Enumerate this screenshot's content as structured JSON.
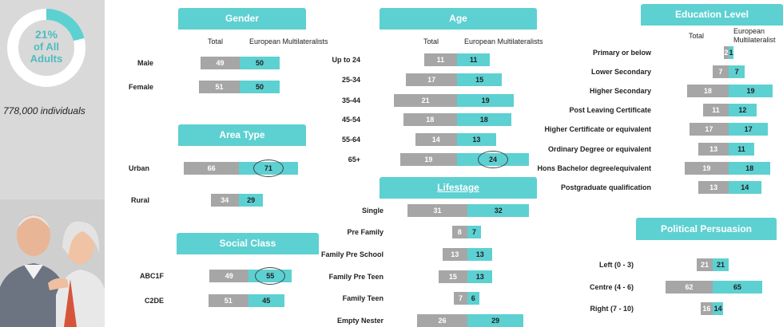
{
  "summary": {
    "percent": "21%",
    "of_label": "of All",
    "adults_label": "Adults",
    "percent_value": 21,
    "individuals": "778,000  individuals"
  },
  "colors": {
    "teal": "#5dd0d2",
    "grey": "#a6a6a6",
    "sidebar": "#d9d9d9"
  },
  "col_total": "Total",
  "col_segment": "European Multilateralists",
  "col_segment_line1": "European",
  "col_segment_line2": "Multilateralist",
  "chart_data": [
    {
      "type": "bar",
      "title": "Gender",
      "series": [
        {
          "name": "Total"
        },
        {
          "name": "European Multilateralists"
        }
      ],
      "categories": [
        "Male",
        "Female"
      ],
      "total": [
        49,
        51
      ],
      "segment": [
        50,
        50
      ]
    },
    {
      "type": "bar",
      "title": "Area Type",
      "categories": [
        "Urban",
        "Rural"
      ],
      "total": [
        66,
        34
      ],
      "segment": [
        71,
        29
      ],
      "highlight": [
        "Urban"
      ]
    },
    {
      "type": "bar",
      "title": "Social Class",
      "categories": [
        "ABC1F",
        "C2DE"
      ],
      "total": [
        49,
        51
      ],
      "segment": [
        55,
        45
      ],
      "highlight": [
        "ABC1F"
      ]
    },
    {
      "type": "bar",
      "title": "Age",
      "series": [
        {
          "name": "Total"
        },
        {
          "name": "European Multilateralists"
        }
      ],
      "categories": [
        "Up to 24",
        "25-34",
        "35-44",
        "45-54",
        "55-64",
        "65+"
      ],
      "total": [
        11,
        17,
        21,
        18,
        14,
        19
      ],
      "segment": [
        11,
        15,
        19,
        18,
        13,
        24
      ],
      "highlight": [
        "65+"
      ]
    },
    {
      "type": "bar",
      "title": "Lifestage",
      "categories": [
        "Single",
        "Pre Family",
        "Family Pre School",
        "Family Pre Teen",
        "Family Teen",
        "Empty Nester"
      ],
      "total": [
        31,
        8,
        13,
        15,
        7,
        26
      ],
      "segment": [
        32,
        7,
        13,
        13,
        6,
        29
      ]
    },
    {
      "type": "bar",
      "title": "Education Level",
      "series": [
        {
          "name": "Total"
        },
        {
          "name": "European Multilateralist"
        }
      ],
      "categories": [
        "Primary or below",
        "Lower Secondary",
        "Higher Secondary",
        "Post Leaving Certificate",
        "Higher Certificate or equivalent",
        "Ordinary Degree or equivalent",
        "Hons Bachelor degree/equivalent",
        "Postgraduate qualification"
      ],
      "total": [
        2,
        7,
        18,
        11,
        17,
        13,
        19,
        13
      ],
      "segment": [
        1,
        7,
        19,
        12,
        17,
        11,
        18,
        14
      ]
    },
    {
      "type": "bar",
      "title": "Political Persuasion",
      "categories": [
        "Left (0 - 3)",
        "Centre (4 - 6)",
        "Right (7 - 10)"
      ],
      "total": [
        21,
        62,
        16
      ],
      "segment": [
        21,
        65,
        14
      ]
    }
  ]
}
